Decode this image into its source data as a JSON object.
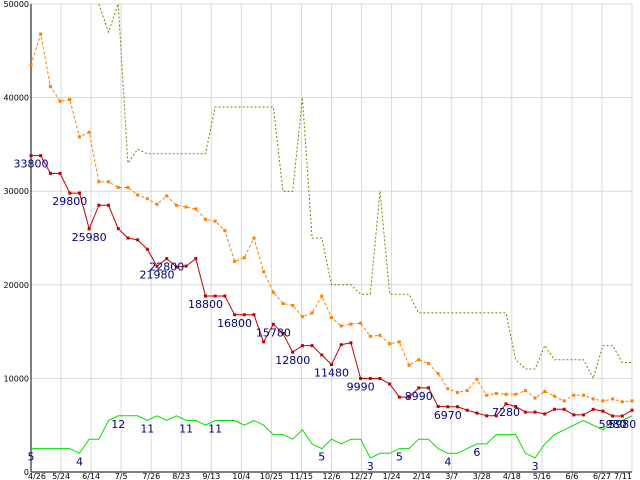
{
  "chart_data": {
    "type": "line",
    "ylim": [
      0,
      50000
    ],
    "y_ticks": [
      "0",
      "10000",
      "20000",
      "30000",
      "40000",
      "50000"
    ],
    "x_ticks": [
      "4/26",
      "5/24",
      "6/14",
      "7/5",
      "7/26",
      "8/23",
      "9/13",
      "10/4",
      "10/25",
      "11/15",
      "12/6",
      "12/27",
      "1/24",
      "2/14",
      "3/7",
      "3/28",
      "4/18",
      "5/16",
      "6/6",
      "6/27",
      "7/11"
    ],
    "grid": true,
    "x_count": 63,
    "series": [
      {
        "color": "#808000",
        "style": "dotted",
        "values": [
          null,
          null,
          null,
          null,
          null,
          null,
          null,
          50000,
          47000,
          50000,
          33000,
          34500,
          34000,
          34000,
          34000,
          34000,
          34000,
          34000,
          34000,
          39000,
          39000,
          39000,
          39000,
          39000,
          39000,
          39000,
          30000,
          30000,
          40000,
          25000,
          25000,
          20000,
          20000,
          20000,
          19000,
          19000,
          30000,
          19000,
          19000,
          19000,
          17000,
          17000,
          17000,
          17000,
          17000,
          17000,
          17000,
          17000,
          17000,
          17000,
          12000,
          11000,
          11000,
          13500,
          12000,
          12000,
          12000,
          12000,
          10000,
          13500,
          13500,
          11700,
          11700
        ]
      },
      {
        "color": "#ff8000",
        "style": "dashed",
        "values": [
          43500,
          46800,
          41200,
          39600,
          39800,
          35800,
          36300,
          31000,
          31000,
          30400,
          30400,
          29600,
          29200,
          28600,
          29500,
          28500,
          28300,
          28100,
          27000,
          26800,
          25800,
          22500,
          22900,
          25000,
          21400,
          19200,
          18000,
          17800,
          16600,
          17000,
          18800,
          16500,
          15600,
          15800,
          15900,
          14500,
          14600,
          13700,
          13900,
          11400,
          12000,
          11600,
          10500,
          8900,
          8500,
          8700,
          9900,
          8200,
          8400,
          8300,
          8300,
          8700,
          7900,
          8600,
          8100,
          7600,
          8200,
          8200,
          7800,
          7600,
          7800,
          7500,
          7600
        ]
      },
      {
        "color": "#c00000",
        "style": "solid",
        "values": [
          33800,
          33800,
          31900,
          31900,
          29800,
          29800,
          25980,
          28500,
          28500,
          26000,
          25000,
          24800,
          23800,
          21980,
          22800,
          21900,
          22000,
          22800,
          18800,
          18800,
          18800,
          16800,
          16800,
          16800,
          13900,
          15780,
          14800,
          12800,
          13500,
          13500,
          12500,
          11480,
          13600,
          13800,
          9990,
          9990,
          9990,
          9400,
          8000,
          8000,
          8990,
          8990,
          7000,
          6970,
          6970,
          6600,
          6300,
          6000,
          6000,
          7280,
          7000,
          6400,
          6400,
          6200,
          6700,
          6700,
          6100,
          6100,
          6700,
          6500,
          5980,
          5980,
          6600
        ]
      },
      {
        "color": "#00e000",
        "style": "solid",
        "values": [
          5,
          5,
          5,
          5,
          5,
          4,
          7,
          7,
          11,
          12,
          12,
          12,
          11,
          12,
          11,
          12,
          11,
          11,
          10,
          11,
          11,
          11,
          10,
          11,
          10,
          8,
          8,
          7,
          9,
          6,
          5,
          7,
          6,
          7,
          7,
          3,
          4,
          4,
          5,
          5,
          7,
          7,
          5,
          4,
          4,
          5,
          6,
          6,
          8,
          8,
          8,
          4,
          3,
          6,
          8,
          9,
          10,
          11,
          10,
          9,
          11,
          11,
          12
        ]
      }
    ],
    "count_axis_max": 100,
    "data_labels": [
      "33800",
      "29800",
      "25980",
      "21980",
      "22800",
      "18800",
      "16800",
      "15780",
      "12800",
      "11480",
      "9990",
      "8990",
      "6970",
      "7280",
      "5980",
      "5980"
    ],
    "count_labels": [
      "5",
      "4",
      "12",
      "11",
      "11",
      "11",
      "5",
      "3",
      "5",
      "4",
      "6",
      "3"
    ]
  }
}
